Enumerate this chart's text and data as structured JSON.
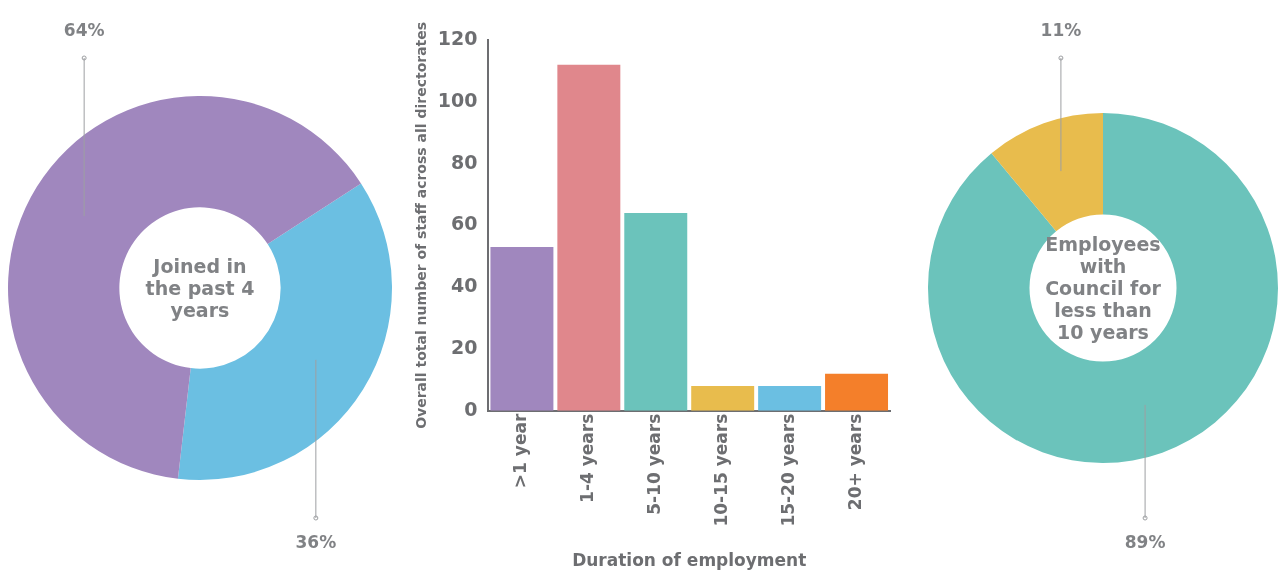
{
  "chart_data": [
    {
      "type": "donut",
      "title": "Joined in the past 4 years",
      "categories": [
        null,
        null
      ],
      "values": [
        36,
        64
      ],
      "colors": [
        "#6bbfe2",
        "#a087be"
      ],
      "value_labels": [
        "36%",
        "64%"
      ]
    },
    {
      "type": "bar",
      "xlabel": "Duration of employment",
      "ylabel": "Overall total number of staff across all directorates",
      "categories": [
        ">1 year",
        "1-4 years",
        "5-10 years",
        "10-15 years",
        "15-20 years",
        "20+ years"
      ],
      "values": [
        53,
        112,
        64,
        8,
        8,
        12
      ],
      "colors": [
        "#a087be",
        "#e0878c",
        "#6bc3bb",
        "#e8bc4d",
        "#6bbfe2",
        "#f47f2a"
      ],
      "ylim": [
        0,
        120
      ],
      "yticks": [
        0,
        20,
        40,
        60,
        80,
        100,
        120
      ],
      "grid": false,
      "legend": false
    },
    {
      "type": "donut",
      "title": "Employees with Council for less than 10 years",
      "categories": [
        null,
        null
      ],
      "values": [
        89,
        11
      ],
      "colors": [
        "#6bc3bb",
        "#e8bc4d"
      ],
      "value_labels": [
        "89%",
        "11%"
      ]
    }
  ]
}
